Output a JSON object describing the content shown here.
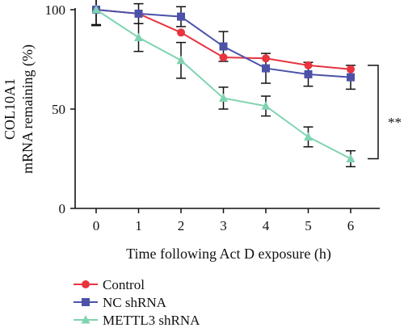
{
  "chart_data": {
    "type": "line",
    "xlabel": "Time following Act D exposure (h)",
    "ylabel_lines": [
      "COL10A1",
      "mRNA remaining (%)"
    ],
    "x": [
      0,
      1,
      2,
      3,
      4,
      5,
      6
    ],
    "xlim": [
      -0.5,
      6.5
    ],
    "ylim": [
      0,
      100
    ],
    "yticks": [
      0,
      50,
      100
    ],
    "grid": false,
    "legend_position": "bottom-left",
    "series": [
      {
        "name": "Control",
        "color": "#e8343f",
        "marker": "circle",
        "values": [
          100,
          98,
          88.5,
          76,
          75.5,
          72,
          70
        ],
        "errors": [
          0,
          0,
          0,
          0,
          0,
          0,
          0
        ]
      },
      {
        "name": "NC shRNA",
        "color": "#4c52a8",
        "marker": "square",
        "values": [
          100,
          98,
          96.5,
          81.5,
          70.5,
          67.5,
          66
        ],
        "errors": [
          8,
          5,
          5,
          7.5,
          7.5,
          6,
          6
        ]
      },
      {
        "name": "METTL3 shRNA",
        "color": "#7fd4b0",
        "marker": "triangle",
        "values": [
          100,
          86,
          74.5,
          55.5,
          51.5,
          36,
          25
        ],
        "errors": [
          7.5,
          7,
          9,
          5.5,
          5,
          5,
          4
        ]
      }
    ],
    "annotation": "**"
  }
}
